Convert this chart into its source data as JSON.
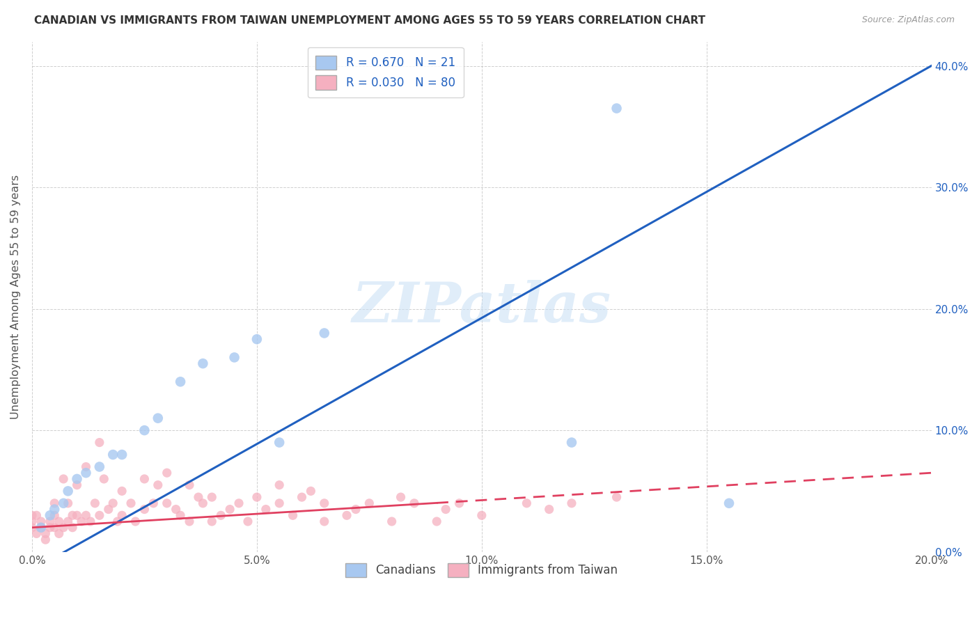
{
  "title": "CANADIAN VS IMMIGRANTS FROM TAIWAN UNEMPLOYMENT AMONG AGES 55 TO 59 YEARS CORRELATION CHART",
  "source": "Source: ZipAtlas.com",
  "ylabel": "Unemployment Among Ages 55 to 59 years",
  "xlim": [
    0.0,
    0.2
  ],
  "ylim": [
    0.0,
    0.42
  ],
  "yticks": [
    0.0,
    0.1,
    0.2,
    0.3,
    0.4
  ],
  "ytick_labels_right": [
    "0.0%",
    "10.0%",
    "20.0%",
    "30.0%",
    "40.0%"
  ],
  "xticks": [
    0.0,
    0.05,
    0.1,
    0.15,
    0.2
  ],
  "xtick_labels": [
    "0.0%",
    "5.0%",
    "10.0%",
    "15.0%",
    "20.0%"
  ],
  "canadians_R": 0.67,
  "canadians_N": 21,
  "taiwan_R": 0.03,
  "taiwan_N": 80,
  "canadians_color": "#A8C8F0",
  "canadians_line_color": "#2060C0",
  "taiwan_color": "#F5B0C0",
  "taiwan_line_color": "#E04060",
  "legend_label_canadians": "Canadians",
  "legend_label_taiwan": "Immigrants from Taiwan",
  "watermark": "ZIPatlas",
  "canadians_x": [
    0.002,
    0.004,
    0.005,
    0.007,
    0.008,
    0.01,
    0.012,
    0.015,
    0.018,
    0.02,
    0.025,
    0.028,
    0.033,
    0.038,
    0.045,
    0.05,
    0.055,
    0.065,
    0.12,
    0.13,
    0.155
  ],
  "canadians_y": [
    0.02,
    0.03,
    0.035,
    0.04,
    0.05,
    0.06,
    0.065,
    0.07,
    0.08,
    0.08,
    0.1,
    0.11,
    0.14,
    0.155,
    0.16,
    0.175,
    0.09,
    0.18,
    0.09,
    0.365,
    0.04
  ],
  "taiwan_x": [
    0.0,
    0.0,
    0.0,
    0.001,
    0.001,
    0.002,
    0.002,
    0.003,
    0.003,
    0.004,
    0.004,
    0.005,
    0.005,
    0.005,
    0.006,
    0.006,
    0.007,
    0.007,
    0.008,
    0.008,
    0.009,
    0.009,
    0.01,
    0.01,
    0.011,
    0.012,
    0.012,
    0.013,
    0.014,
    0.015,
    0.015,
    0.016,
    0.017,
    0.018,
    0.019,
    0.02,
    0.02,
    0.022,
    0.023,
    0.025,
    0.025,
    0.027,
    0.028,
    0.03,
    0.03,
    0.032,
    0.033,
    0.035,
    0.035,
    0.037,
    0.038,
    0.04,
    0.04,
    0.042,
    0.044,
    0.046,
    0.048,
    0.05,
    0.052,
    0.055,
    0.055,
    0.058,
    0.06,
    0.062,
    0.065,
    0.065,
    0.07,
    0.072,
    0.075,
    0.08,
    0.082,
    0.085,
    0.09,
    0.092,
    0.095,
    0.1,
    0.11,
    0.115,
    0.12,
    0.13
  ],
  "taiwan_y": [
    0.02,
    0.03,
    0.025,
    0.015,
    0.03,
    0.02,
    0.025,
    0.01,
    0.015,
    0.02,
    0.025,
    0.03,
    0.04,
    0.02,
    0.025,
    0.015,
    0.06,
    0.02,
    0.04,
    0.025,
    0.03,
    0.02,
    0.055,
    0.03,
    0.025,
    0.07,
    0.03,
    0.025,
    0.04,
    0.09,
    0.03,
    0.06,
    0.035,
    0.04,
    0.025,
    0.05,
    0.03,
    0.04,
    0.025,
    0.06,
    0.035,
    0.04,
    0.055,
    0.04,
    0.065,
    0.035,
    0.03,
    0.055,
    0.025,
    0.045,
    0.04,
    0.025,
    0.045,
    0.03,
    0.035,
    0.04,
    0.025,
    0.045,
    0.035,
    0.04,
    0.055,
    0.03,
    0.045,
    0.05,
    0.025,
    0.04,
    0.03,
    0.035,
    0.04,
    0.025,
    0.045,
    0.04,
    0.025,
    0.035,
    0.04,
    0.03,
    0.04,
    0.035,
    0.04,
    0.045
  ],
  "background_color": "#FFFFFF",
  "grid_color": "#BBBBBB"
}
